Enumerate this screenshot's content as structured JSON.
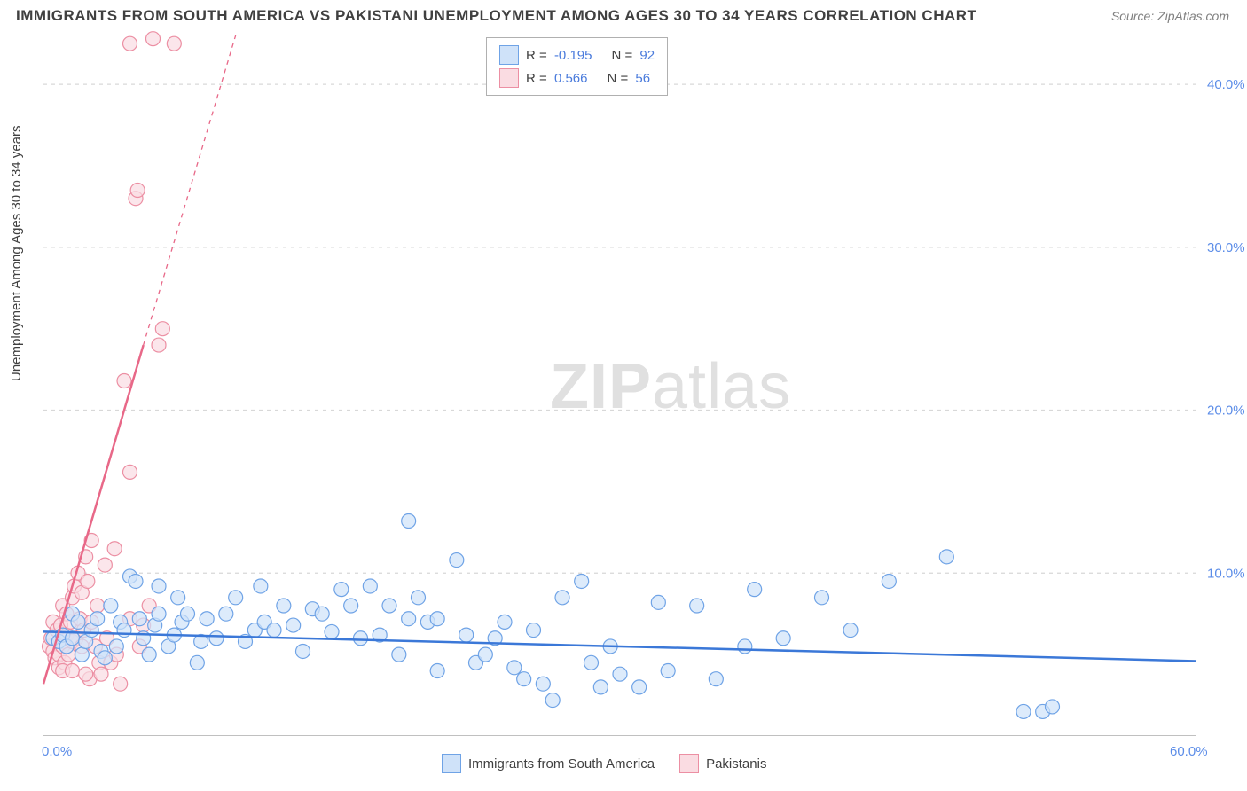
{
  "title": "IMMIGRANTS FROM SOUTH AMERICA VS PAKISTANI UNEMPLOYMENT AMONG AGES 30 TO 34 YEARS CORRELATION CHART",
  "source_label": "Source: ZipAtlas.com",
  "y_axis_label": "Unemployment Among Ages 30 to 34 years",
  "watermark": {
    "bold": "ZIP",
    "rest": "atlas"
  },
  "chart": {
    "type": "scatter",
    "xlim": [
      0,
      60
    ],
    "ylim": [
      0,
      43
    ],
    "x_ticks": [
      {
        "v": 0,
        "label": "0.0%"
      },
      {
        "v": 60,
        "label": "60.0%"
      }
    ],
    "y_ticks": [
      {
        "v": 10,
        "label": "10.0%"
      },
      {
        "v": 20,
        "label": "20.0%"
      },
      {
        "v": 30,
        "label": "30.0%"
      },
      {
        "v": 40,
        "label": "40.0%"
      }
    ],
    "grid_color": "#d8d8d8",
    "background_color": "#ffffff",
    "marker_radius": 8,
    "marker_stroke_width": 1.2,
    "series": [
      {
        "name": "Immigrants from South America",
        "fill": "#cfe2f9",
        "stroke": "#6fa3e6",
        "fill_opacity": 0.7,
        "R": "-0.195",
        "N": "92",
        "trend": {
          "x1": 0,
          "y1": 6.4,
          "x2": 60,
          "y2": 4.6,
          "color": "#3b78d8",
          "width": 2.5,
          "dash": ""
        },
        "points": [
          [
            0.5,
            6.0
          ],
          [
            0.8,
            5.8
          ],
          [
            1.0,
            6.2
          ],
          [
            1.2,
            5.5
          ],
          [
            1.5,
            7.5
          ],
          [
            1.5,
            6.0
          ],
          [
            1.8,
            7.0
          ],
          [
            2.0,
            5.0
          ],
          [
            2.2,
            5.8
          ],
          [
            2.5,
            6.5
          ],
          [
            2.8,
            7.2
          ],
          [
            3.0,
            5.2
          ],
          [
            3.2,
            4.8
          ],
          [
            3.5,
            8.0
          ],
          [
            3.8,
            5.5
          ],
          [
            4.0,
            7.0
          ],
          [
            4.2,
            6.5
          ],
          [
            4.5,
            9.8
          ],
          [
            4.8,
            9.5
          ],
          [
            5.0,
            7.2
          ],
          [
            5.2,
            6.0
          ],
          [
            5.5,
            5.0
          ],
          [
            5.8,
            6.8
          ],
          [
            6.0,
            7.5
          ],
          [
            6.0,
            9.2
          ],
          [
            6.5,
            5.5
          ],
          [
            6.8,
            6.2
          ],
          [
            7.0,
            8.5
          ],
          [
            7.2,
            7.0
          ],
          [
            7.5,
            7.5
          ],
          [
            8.0,
            4.5
          ],
          [
            8.2,
            5.8
          ],
          [
            8.5,
            7.2
          ],
          [
            9.0,
            6.0
          ],
          [
            9.5,
            7.5
          ],
          [
            10.0,
            8.5
          ],
          [
            10.5,
            5.8
          ],
          [
            11.0,
            6.5
          ],
          [
            11.3,
            9.2
          ],
          [
            11.5,
            7.0
          ],
          [
            12.0,
            6.5
          ],
          [
            12.5,
            8.0
          ],
          [
            13.0,
            6.8
          ],
          [
            13.5,
            5.2
          ],
          [
            14.0,
            7.8
          ],
          [
            14.5,
            7.5
          ],
          [
            15.0,
            6.4
          ],
          [
            15.5,
            9.0
          ],
          [
            16.0,
            8.0
          ],
          [
            16.5,
            6.0
          ],
          [
            17.0,
            9.2
          ],
          [
            17.5,
            6.2
          ],
          [
            18.0,
            8.0
          ],
          [
            18.5,
            5.0
          ],
          [
            19.0,
            7.2
          ],
          [
            19.0,
            13.2
          ],
          [
            19.5,
            8.5
          ],
          [
            20.0,
            7.0
          ],
          [
            20.5,
            4.0
          ],
          [
            20.5,
            7.2
          ],
          [
            21.5,
            10.8
          ],
          [
            22.0,
            6.2
          ],
          [
            22.5,
            4.5
          ],
          [
            23.0,
            5.0
          ],
          [
            23.5,
            6.0
          ],
          [
            24.0,
            7.0
          ],
          [
            24.5,
            4.2
          ],
          [
            25.0,
            3.5
          ],
          [
            25.5,
            6.5
          ],
          [
            26.0,
            3.2
          ],
          [
            26.5,
            2.2
          ],
          [
            27.0,
            8.5
          ],
          [
            28.0,
            9.5
          ],
          [
            28.5,
            4.5
          ],
          [
            29.0,
            3.0
          ],
          [
            29.5,
            5.5
          ],
          [
            30.0,
            3.8
          ],
          [
            31.0,
            3.0
          ],
          [
            32.0,
            8.2
          ],
          [
            32.5,
            4.0
          ],
          [
            34.0,
            8.0
          ],
          [
            35.0,
            3.5
          ],
          [
            36.5,
            5.5
          ],
          [
            37.0,
            9.0
          ],
          [
            40.5,
            8.5
          ],
          [
            44.0,
            9.5
          ],
          [
            47.0,
            11.0
          ],
          [
            51.0,
            1.5
          ],
          [
            52.0,
            1.5
          ],
          [
            52.5,
            1.8
          ],
          [
            38.5,
            6.0
          ],
          [
            42.0,
            6.5
          ]
        ]
      },
      {
        "name": "Pakistanis",
        "fill": "#fadce2",
        "stroke": "#ec8fa3",
        "fill_opacity": 0.7,
        "R": "0.566",
        "N": "56",
        "trend": {
          "x1": 0,
          "y1": 3.2,
          "x2": 5.2,
          "y2": 24,
          "color": "#e86888",
          "width": 2.5,
          "dash": ""
        },
        "trend_dash": {
          "x1": 5.2,
          "y1": 24,
          "x2": 10.0,
          "y2": 43,
          "color": "#e86888",
          "width": 1.3,
          "dash": "5,5"
        },
        "points": [
          [
            0.3,
            5.5
          ],
          [
            0.4,
            6.0
          ],
          [
            0.5,
            5.2
          ],
          [
            0.5,
            7.0
          ],
          [
            0.6,
            4.8
          ],
          [
            0.7,
            6.5
          ],
          [
            0.8,
            5.0
          ],
          [
            0.8,
            4.2
          ],
          [
            0.9,
            6.8
          ],
          [
            1.0,
            5.5
          ],
          [
            1.0,
            8.0
          ],
          [
            1.1,
            4.5
          ],
          [
            1.2,
            6.2
          ],
          [
            1.2,
            7.5
          ],
          [
            1.3,
            5.0
          ],
          [
            1.4,
            7.0
          ],
          [
            1.5,
            8.5
          ],
          [
            1.5,
            5.8
          ],
          [
            1.6,
            9.2
          ],
          [
            1.7,
            6.0
          ],
          [
            1.8,
            10.0
          ],
          [
            1.9,
            7.2
          ],
          [
            2.0,
            5.5
          ],
          [
            2.0,
            8.8
          ],
          [
            2.1,
            6.5
          ],
          [
            2.2,
            11.0
          ],
          [
            2.3,
            9.5
          ],
          [
            2.4,
            3.5
          ],
          [
            2.5,
            7.0
          ],
          [
            2.5,
            12.0
          ],
          [
            2.7,
            5.5
          ],
          [
            2.8,
            8.0
          ],
          [
            2.9,
            4.5
          ],
          [
            3.0,
            3.8
          ],
          [
            3.2,
            10.5
          ],
          [
            3.3,
            6.0
          ],
          [
            3.5,
            4.5
          ],
          [
            3.7,
            11.5
          ],
          [
            3.8,
            5.0
          ],
          [
            4.0,
            3.2
          ],
          [
            4.2,
            21.8
          ],
          [
            4.5,
            16.2
          ],
          [
            4.5,
            7.2
          ],
          [
            4.8,
            33.0
          ],
          [
            4.9,
            33.5
          ],
          [
            5.0,
            5.5
          ],
          [
            5.2,
            6.8
          ],
          [
            5.5,
            8.0
          ],
          [
            6.0,
            24.0
          ],
          [
            6.2,
            25.0
          ],
          [
            6.8,
            42.5
          ],
          [
            4.5,
            42.5
          ],
          [
            5.7,
            42.8
          ],
          [
            1.0,
            4.0
          ],
          [
            1.5,
            4.0
          ],
          [
            2.2,
            3.8
          ]
        ]
      }
    ]
  },
  "legend_bottom": [
    {
      "label": "Immigrants from South America",
      "fill": "#cfe2f9",
      "stroke": "#6fa3e6"
    },
    {
      "label": "Pakistanis",
      "fill": "#fadce2",
      "stroke": "#ec8fa3"
    }
  ]
}
